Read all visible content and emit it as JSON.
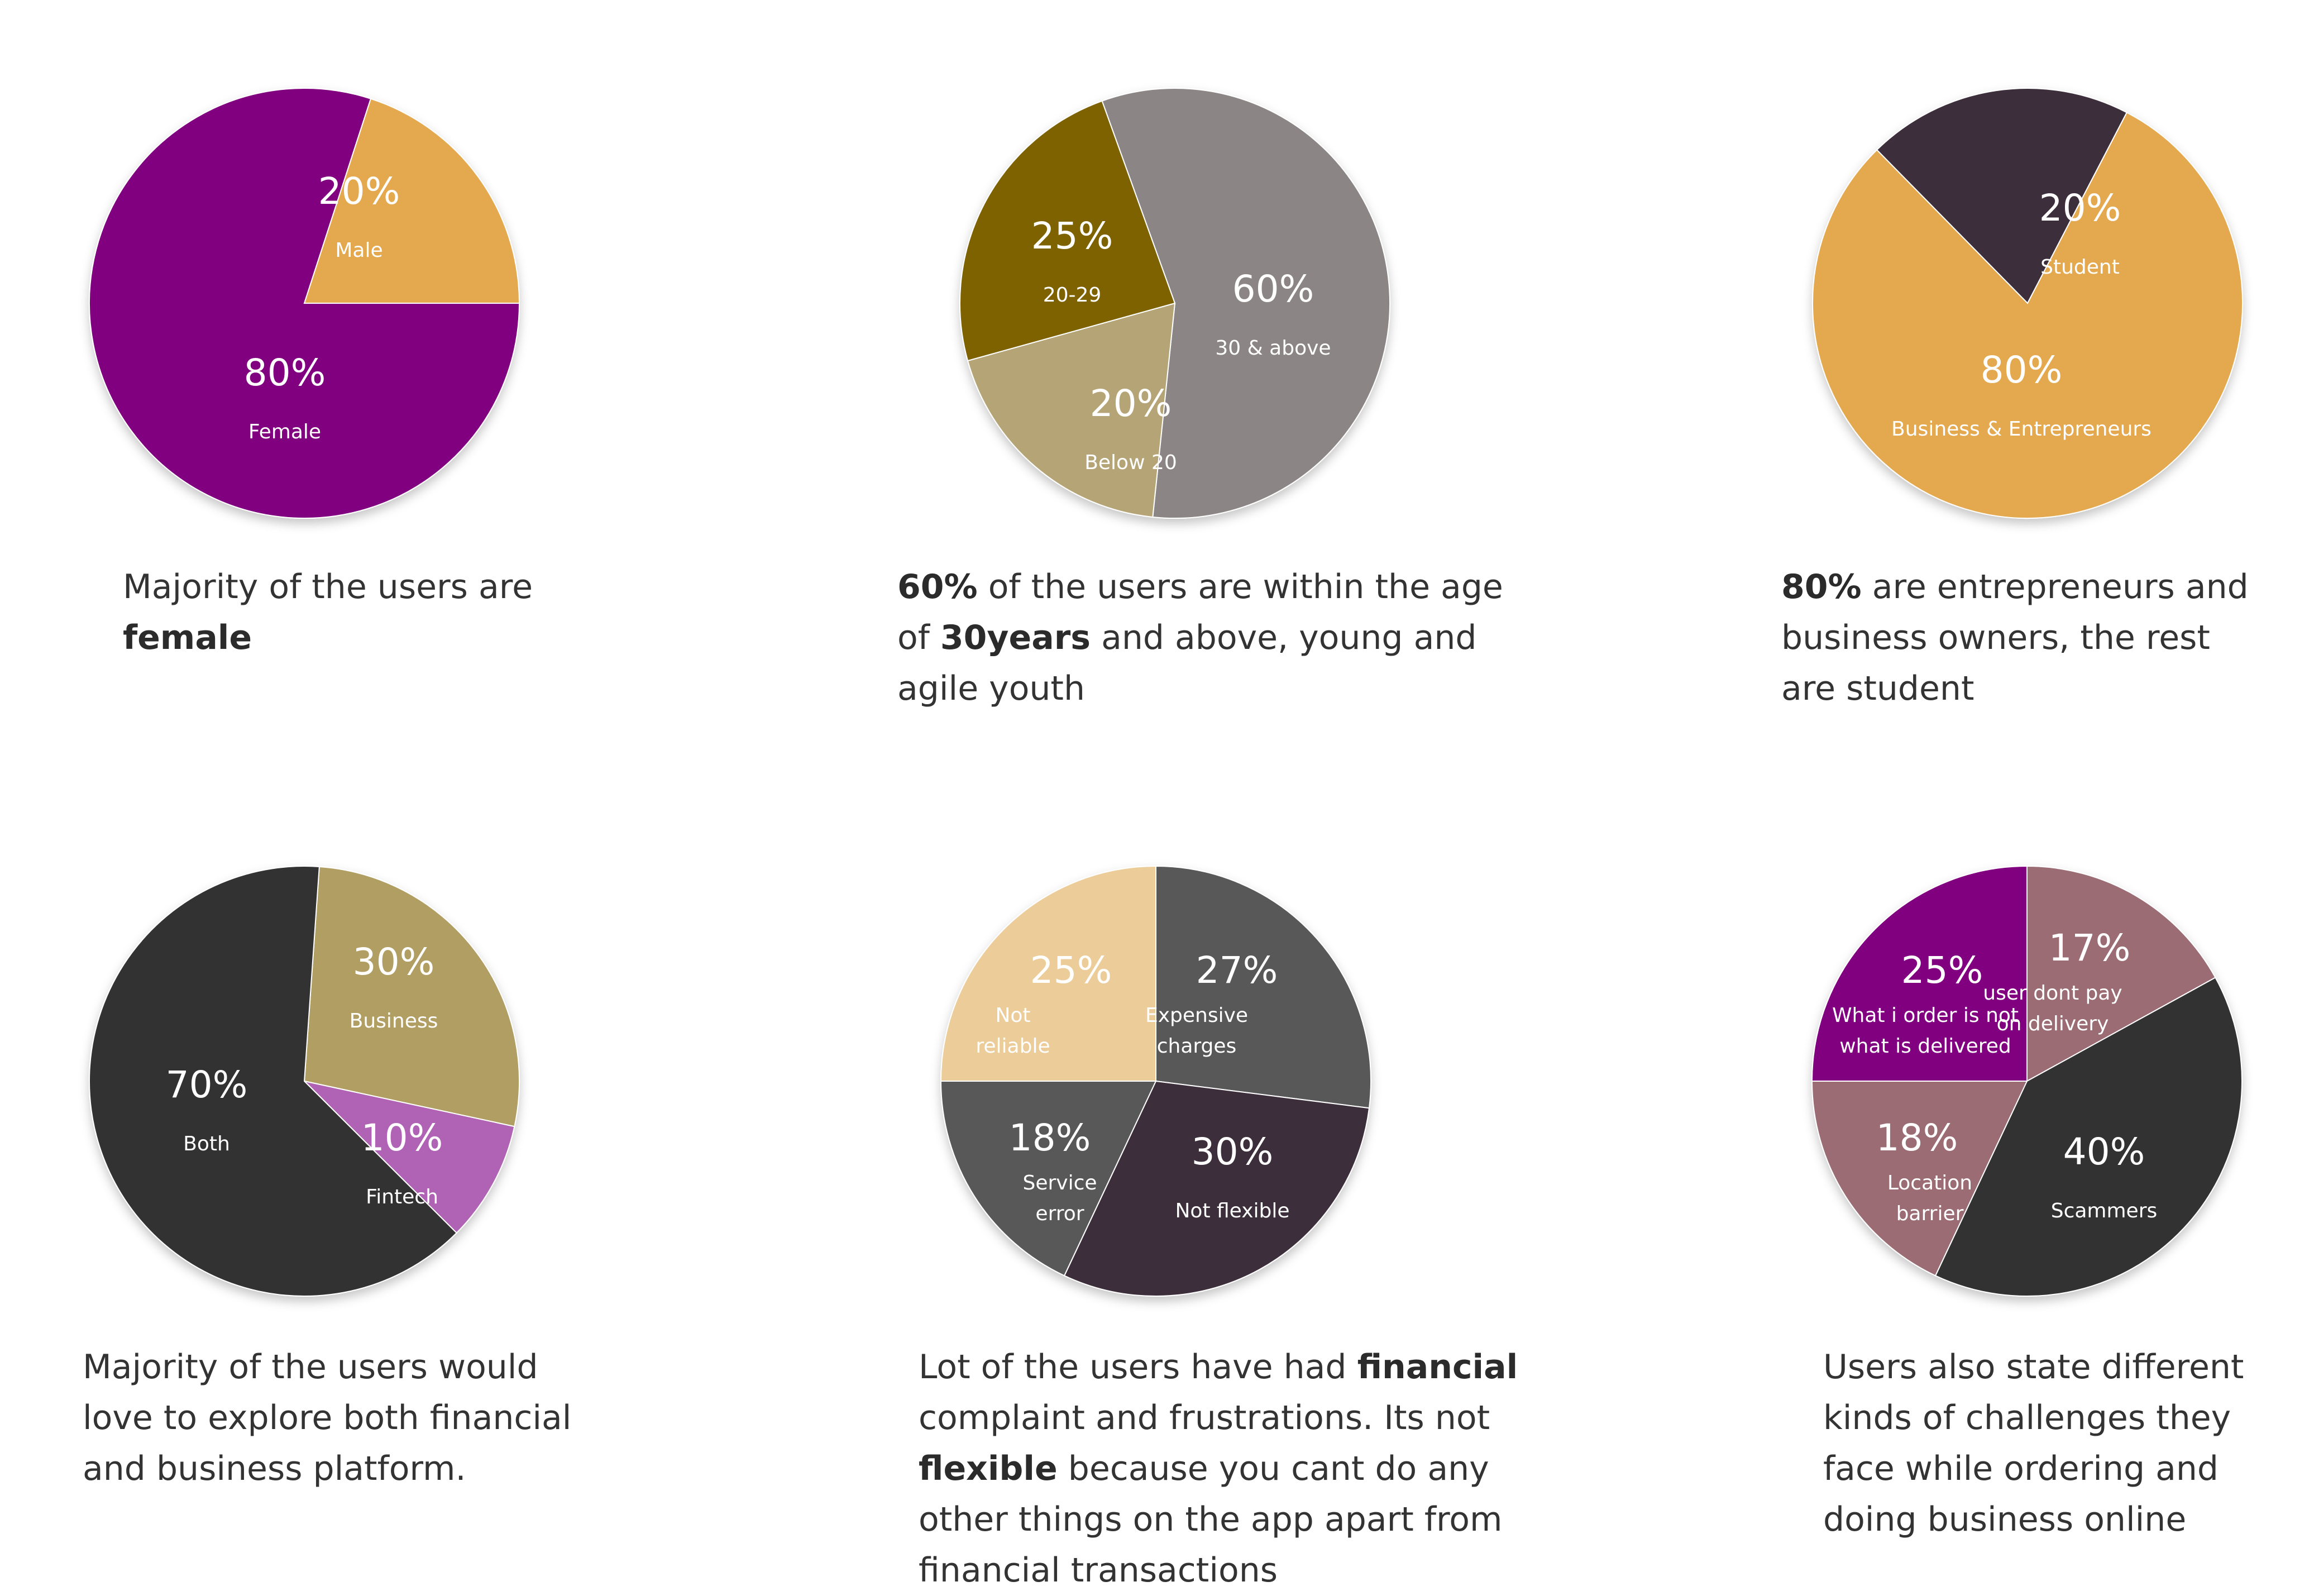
{
  "chart_data": [
    {
      "type": "pie",
      "slices": [
        {
          "label": "Female",
          "pct_text": "80%",
          "value": 80,
          "color": "#800080"
        },
        {
          "label": "Male",
          "pct_text": "20%",
          "value": 20,
          "color": "#E4A950"
        }
      ],
      "caption": [
        [
          {
            "t": "Majority of the users are"
          }
        ],
        [
          {
            "t": "female",
            "b": true
          }
        ]
      ]
    },
    {
      "type": "pie",
      "slices": [
        {
          "label": "30 & above",
          "pct_text": "60%",
          "value": 60,
          "color": "#8B8685"
        },
        {
          "label": "Below 20",
          "pct_text": "20%",
          "value": 20,
          "color": "#B5A576"
        },
        {
          "label": "20-29",
          "pct_text": "25%",
          "value": 25,
          "color": "#7F6202"
        }
      ],
      "caption": [
        [
          {
            "t": "60%",
            "b": true
          },
          {
            "t": " of the users are within the age"
          }
        ],
        [
          {
            "t": "of "
          },
          {
            "t": "30years",
            "b": true
          },
          {
            "t": " and above, young and"
          }
        ],
        [
          {
            "t": "agile youth"
          }
        ]
      ]
    },
    {
      "type": "pie",
      "slices": [
        {
          "label": "Student",
          "pct_text": "20%",
          "value": 20,
          "color": "#3E2E3A"
        },
        {
          "label": "Business & Entrepreneurs",
          "pct_text": "80%",
          "value": 80,
          "color": "#E4A950"
        }
      ],
      "caption": [
        [
          {
            "t": "80%",
            "b": true
          },
          {
            "t": " are entrepreneurs and"
          }
        ],
        [
          {
            "t": "business owners, the rest"
          }
        ],
        [
          {
            "t": "are student"
          }
        ]
      ]
    },
    {
      "type": "pie",
      "slices": [
        {
          "label": "Business",
          "pct_text": "30%",
          "value": 30,
          "color": "#B19E62"
        },
        {
          "label": "Fintech",
          "pct_text": "10%",
          "value": 10,
          "color": "#B064B4"
        },
        {
          "label": "Both",
          "pct_text": "70%",
          "value": 70,
          "color": "#333333"
        }
      ],
      "caption": [
        [
          {
            "t": "Majority of the users would"
          }
        ],
        [
          {
            "t": "love to explore both financial"
          }
        ],
        [
          {
            "t": "and business platform."
          }
        ]
      ]
    },
    {
      "type": "pie",
      "slices": [
        {
          "label": "Expensive charges",
          "pct_text": "27%",
          "value": 27,
          "color": "#585858"
        },
        {
          "label": "Not flexible",
          "pct_text": "30%",
          "value": 30,
          "color": "#3E2E3A"
        },
        {
          "label": "Service error",
          "pct_text": "18%",
          "value": 18,
          "color": "#585858"
        },
        {
          "label": "Not reliable",
          "pct_text": "25%",
          "value": 25,
          "color": "#ECCC99"
        }
      ],
      "caption": [
        [
          {
            "t": "Lot of the users have had "
          },
          {
            "t": "financial",
            "b": true
          }
        ],
        [
          {
            "t": "complaint and frustrations. Its not"
          }
        ],
        [
          {
            "t": "flexible",
            "b": true
          },
          {
            "t": " because you cant do any"
          }
        ],
        [
          {
            "t": "other things on the app apart from"
          }
        ],
        [
          {
            "t": "financial transactions"
          }
        ]
      ]
    },
    {
      "type": "pie",
      "slices": [
        {
          "label": "user dont pay on delivery",
          "pct_text": "17%",
          "value": 17,
          "color": "#9B6C73"
        },
        {
          "label": "Scammers",
          "pct_text": "40%",
          "value": 40,
          "color": "#333333"
        },
        {
          "label": "Location barrier",
          "pct_text": "18%",
          "value": 18,
          "color": "#9B6C73"
        },
        {
          "label": "What i order is not what is delivered",
          "pct_text": "25%",
          "value": 25,
          "color": "#800080"
        }
      ],
      "caption": [
        [
          {
            "t": "Users also state different"
          }
        ],
        [
          {
            "t": "kinds of challenges they"
          }
        ],
        [
          {
            "t": "face while ordering and"
          }
        ],
        [
          {
            "t": "doing business online"
          }
        ]
      ]
    }
  ]
}
